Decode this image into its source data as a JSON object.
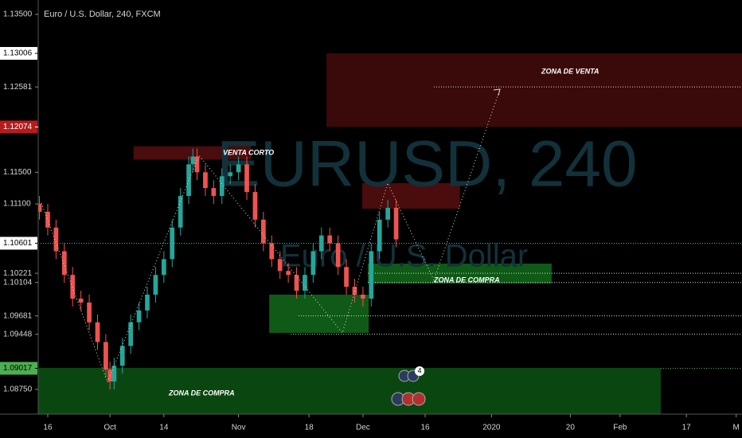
{
  "header": {
    "symbol": "Euro / U.S. Dollar, 240, FXCM",
    "watermark": "EURUSD, 240",
    "watermark_sub": "Euro / U.S. Dollar",
    "event_badge": "4"
  },
  "chart_data": {
    "type": "candlestick",
    "x": [
      -2,
      0,
      2,
      4,
      6,
      8,
      10,
      12,
      14,
      15,
      16,
      18,
      20,
      22,
      24,
      26,
      28,
      30,
      32,
      34,
      35,
      36,
      38,
      40,
      42,
      44,
      46,
      48,
      50,
      52,
      54,
      56,
      58,
      60,
      62,
      64,
      66,
      68,
      70,
      72,
      74,
      76,
      78,
      80,
      82,
      84
    ],
    "open": [
      1.111,
      1.11,
      1.108,
      1.105,
      1.102,
      1.099,
      1.0985,
      1.096,
      1.0935,
      1.09,
      1.0885,
      1.0905,
      1.093,
      1.096,
      1.0975,
      1.0995,
      1.102,
      1.104,
      1.108,
      1.112,
      1.116,
      1.117,
      1.115,
      1.113,
      1.112,
      1.1145,
      1.115,
      1.116,
      1.1125,
      1.109,
      1.106,
      1.104,
      1.1025,
      1.102,
      1.1,
      1.102,
      1.105,
      1.107,
      1.106,
      1.103,
      1.1005,
      1.0995,
      1.099,
      1.105,
      1.109,
      1.1105
    ],
    "high": [
      1.112,
      1.111,
      1.109,
      1.106,
      1.103,
      1.1,
      1.0995,
      1.097,
      1.0945,
      1.091,
      1.0915,
      1.094,
      1.097,
      1.0985,
      1.1005,
      1.103,
      1.105,
      1.109,
      1.113,
      1.117,
      1.118,
      1.118,
      1.116,
      1.114,
      1.1155,
      1.116,
      1.117,
      1.117,
      1.1135,
      1.11,
      1.107,
      1.105,
      1.1035,
      1.103,
      1.103,
      1.106,
      1.108,
      1.108,
      1.107,
      1.104,
      1.1015,
      1.1005,
      1.106,
      1.11,
      1.1115,
      1.1115
    ],
    "low": [
      1.109,
      1.107,
      1.104,
      1.101,
      1.098,
      1.0975,
      1.095,
      1.0925,
      1.089,
      1.0875,
      1.0875,
      1.0895,
      1.092,
      1.095,
      1.0965,
      1.0985,
      1.101,
      1.103,
      1.107,
      1.111,
      1.115,
      1.114,
      1.112,
      1.111,
      1.111,
      1.1135,
      1.114,
      1.1115,
      1.108,
      1.105,
      1.103,
      1.1015,
      1.101,
      1.099,
      1.099,
      1.101,
      1.104,
      1.105,
      1.102,
      1.0995,
      1.0985,
      1.098,
      1.098,
      1.104,
      1.108,
      1.1055
    ],
    "close": [
      1.11,
      1.108,
      1.105,
      1.102,
      1.099,
      1.0985,
      1.096,
      1.0935,
      1.09,
      1.0885,
      1.0905,
      1.093,
      1.096,
      1.0975,
      1.0995,
      1.102,
      1.104,
      1.108,
      1.112,
      1.116,
      1.117,
      1.115,
      1.113,
      1.112,
      1.1145,
      1.115,
      1.116,
      1.1125,
      1.109,
      1.106,
      1.104,
      1.1025,
      1.102,
      1.1,
      1.102,
      1.105,
      1.107,
      1.106,
      1.103,
      1.1005,
      1.0995,
      1.099,
      1.105,
      1.109,
      1.1105,
      1.1065
    ],
    "up_color": "#26a69a",
    "down_color": "#ef5350",
    "xlim": [
      -2.3,
      167.4
    ],
    "ylim": [
      1.08437,
      1.13682
    ],
    "xticks": [
      {
        "value": 0,
        "label": "16"
      },
      {
        "value": 15,
        "label": "Oct"
      },
      {
        "value": 28,
        "label": "14"
      },
      {
        "value": 46,
        "label": "Nov"
      },
      {
        "value": 63,
        "label": "18"
      },
      {
        "value": 76,
        "label": "Dec"
      },
      {
        "value": 91,
        "label": "16"
      },
      {
        "value": 107,
        "label": "2020"
      },
      {
        "value": 126,
        "label": "20"
      },
      {
        "value": 138,
        "label": "Feb"
      },
      {
        "value": 154,
        "label": "17"
      },
      {
        "value": 166,
        "label": "M"
      }
    ],
    "yticks": [
      {
        "value": 1.135,
        "label": "1.13500"
      },
      {
        "value": 1.12581,
        "label": "1.12581"
      },
      {
        "value": 1.115,
        "label": "1.11500"
      },
      {
        "value": 1.111,
        "label": "1.11100"
      },
      {
        "value": 1.10221,
        "label": "1.10221"
      },
      {
        "value": 1.10104,
        "label": "1.10104"
      },
      {
        "value": 1.09681,
        "label": "1.09681"
      },
      {
        "value": 1.09448,
        "label": "1.09448"
      },
      {
        "value": 1.0875,
        "label": "1.08750"
      }
    ],
    "levels": [
      {
        "value": 1.13006,
        "label": "1.13006",
        "color": "#ffffff",
        "text_color": "#000000"
      },
      {
        "value": 1.12074,
        "label": "1.12074",
        "color": "#b71c1c",
        "text_color": "#ffffff"
      },
      {
        "value": 1.10601,
        "label": "1.10601",
        "color": "#ffffff",
        "text_color": "#000000"
      },
      {
        "value": 1.09017,
        "label": "1.09017",
        "color": "#4caf50",
        "text_color": "#000000"
      }
    ],
    "zones": [
      {
        "label": "ZONA DE VENTA",
        "x": [
          67.2,
          168
        ],
        "y": [
          1.12074,
          1.13006
        ],
        "color": "#3a0909"
      },
      {
        "label": "VENTA CORTO",
        "x": [
          20.7,
          49
        ],
        "y": [
          1.1166,
          1.1183
        ],
        "color": "#4a0c0c"
      },
      {
        "x": [
          75.8,
          99.4
        ],
        "y": [
          1.11039,
          1.11362
        ],
        "color": "#4a0c0c"
      },
      {
        "label": "ZONA DE COMPRA",
        "x": [
          77.2,
          121.5
        ],
        "y": [
          1.10091,
          1.10343
        ],
        "color": "#0f5a16"
      },
      {
        "x": [
          53.4,
          77.4
        ],
        "y": [
          1.09466,
          1.0995
        ],
        "color": "#0f5a16"
      },
      {
        "label": "ZONA DE COMPRA",
        "x": [
          -2.3,
          147.8
        ],
        "y": [
          1.08437,
          1.09022
        ],
        "color": "#0a4710"
      }
    ]
  }
}
